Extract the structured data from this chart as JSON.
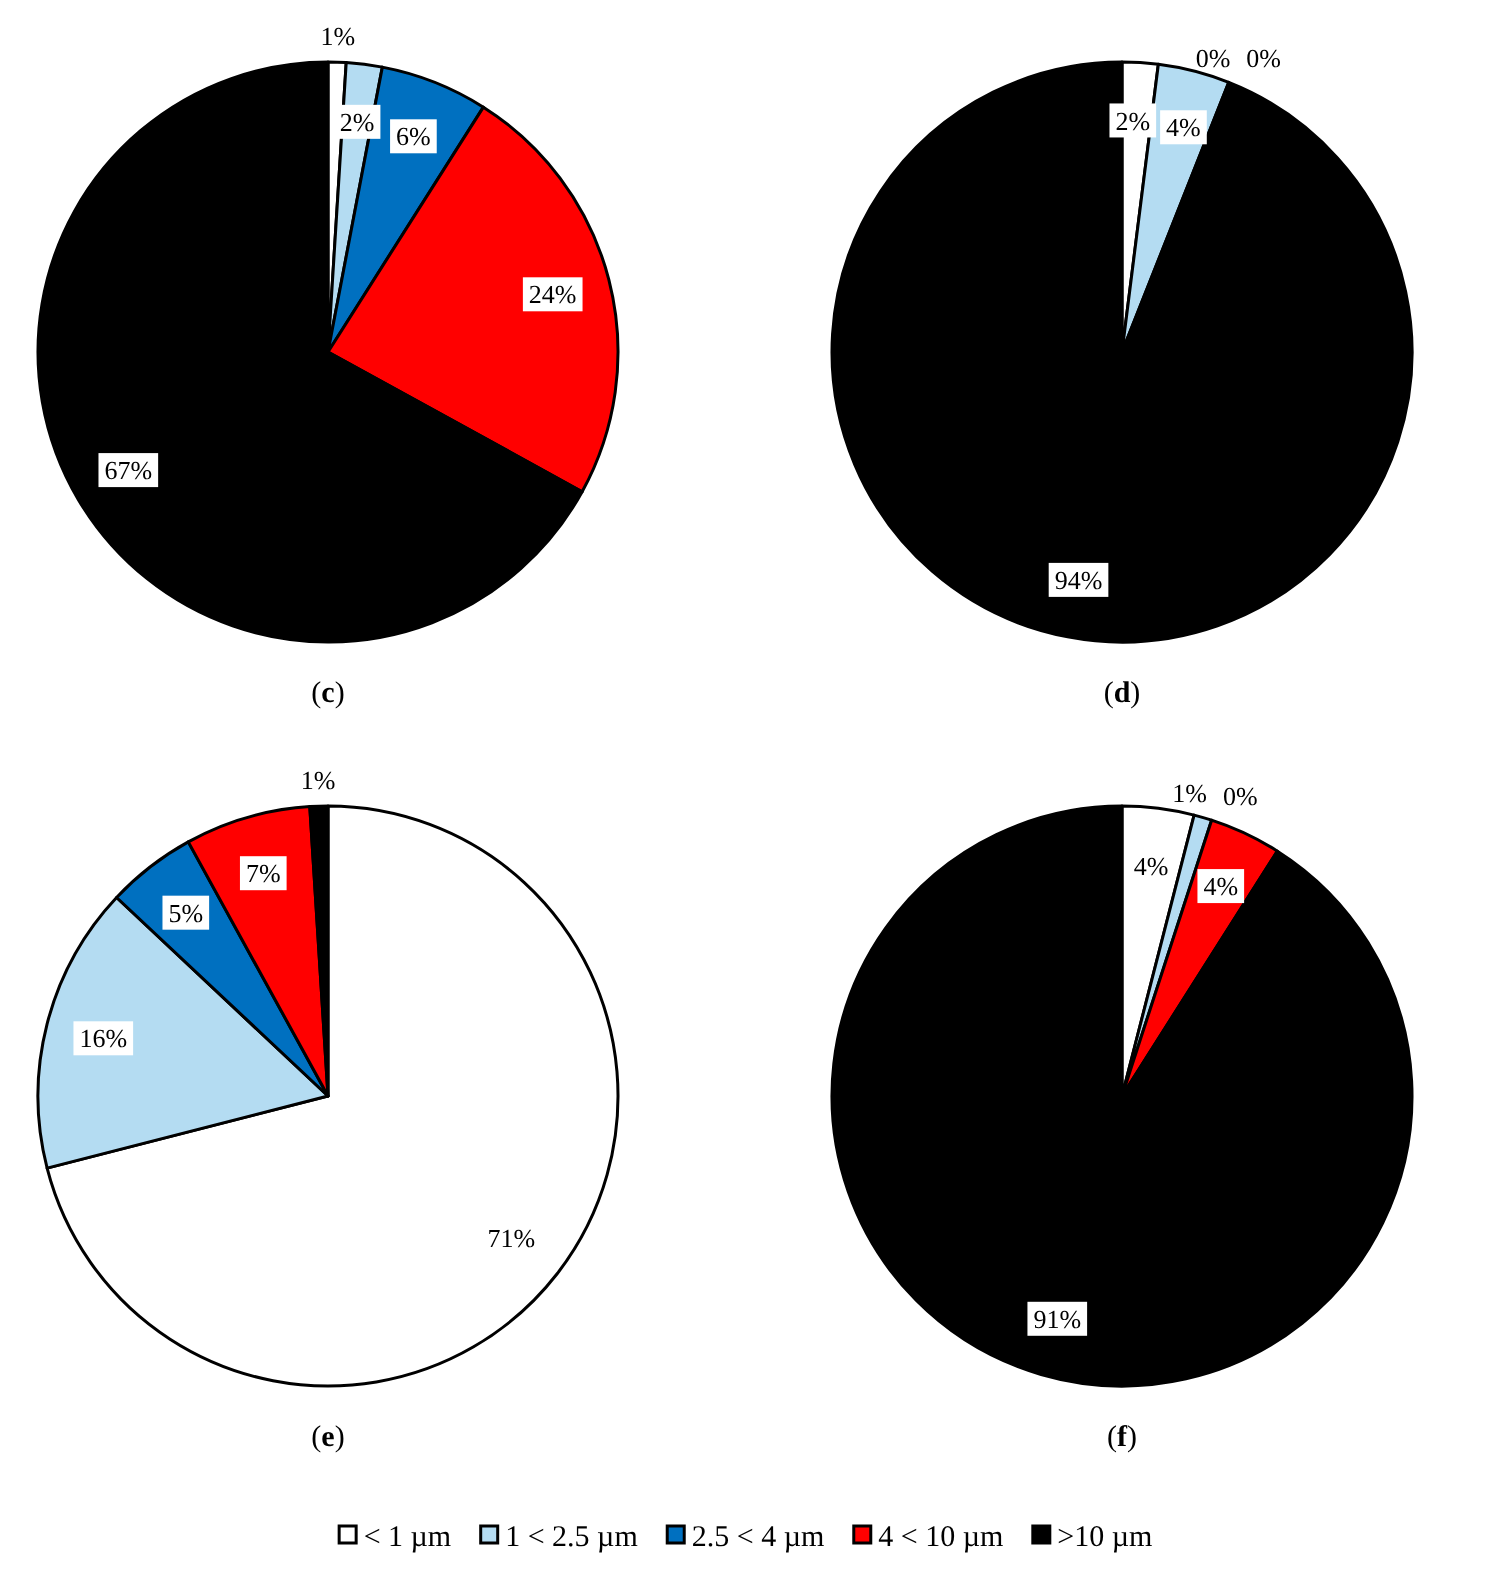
{
  "chart_data": [
    {
      "type": "pie",
      "title": "(c)",
      "categories": [
        "< 1 µm",
        "1 < 2.5 µm",
        "2.5 < 4 µm",
        "4 < 10 µm",
        ">10 µm"
      ],
      "values": [
        1,
        2,
        6,
        24,
        67
      ],
      "colors": [
        "#ffffff",
        "#b4dcf2",
        "#0070c0",
        "#ff0000",
        "#000000"
      ],
      "value_labels": [
        "1%",
        "2%",
        "6%",
        "24%",
        "67%"
      ],
      "legend": "bottom"
    },
    {
      "type": "pie",
      "title": "(d)",
      "categories": [
        null,
        null,
        null,
        null,
        null
      ],
      "values": [
        2,
        4,
        0,
        0,
        94
      ],
      "colors": [
        "#ffffff",
        "#b4dcf2",
        null,
        null,
        "#000000"
      ],
      "value_labels": [
        "2%",
        "4%",
        "0%",
        "0%",
        "94%"
      ]
    },
    {
      "type": "pie",
      "title": "(e)",
      "categories": [
        null,
        null,
        null,
        null,
        null
      ],
      "values": [
        71,
        16,
        5,
        7,
        1
      ],
      "colors": [
        "#ffffff",
        "#b4dcf2",
        "#0070c0",
        "#ff0000",
        "#000000"
      ],
      "value_labels": [
        "71%",
        "16%",
        "5%",
        "7%",
        "1%"
      ]
    },
    {
      "type": "pie",
      "title": "(f)",
      "categories": [
        null,
        null,
        null,
        null,
        null
      ],
      "values": [
        4,
        1,
        0,
        4,
        91
      ],
      "colors": [
        "#ffffff",
        "#b4dcf2",
        null,
        "#ff0000",
        "#000000"
      ],
      "value_labels": [
        "4%",
        "1%",
        "0%",
        "4%",
        "91%"
      ]
    }
  ]
}
